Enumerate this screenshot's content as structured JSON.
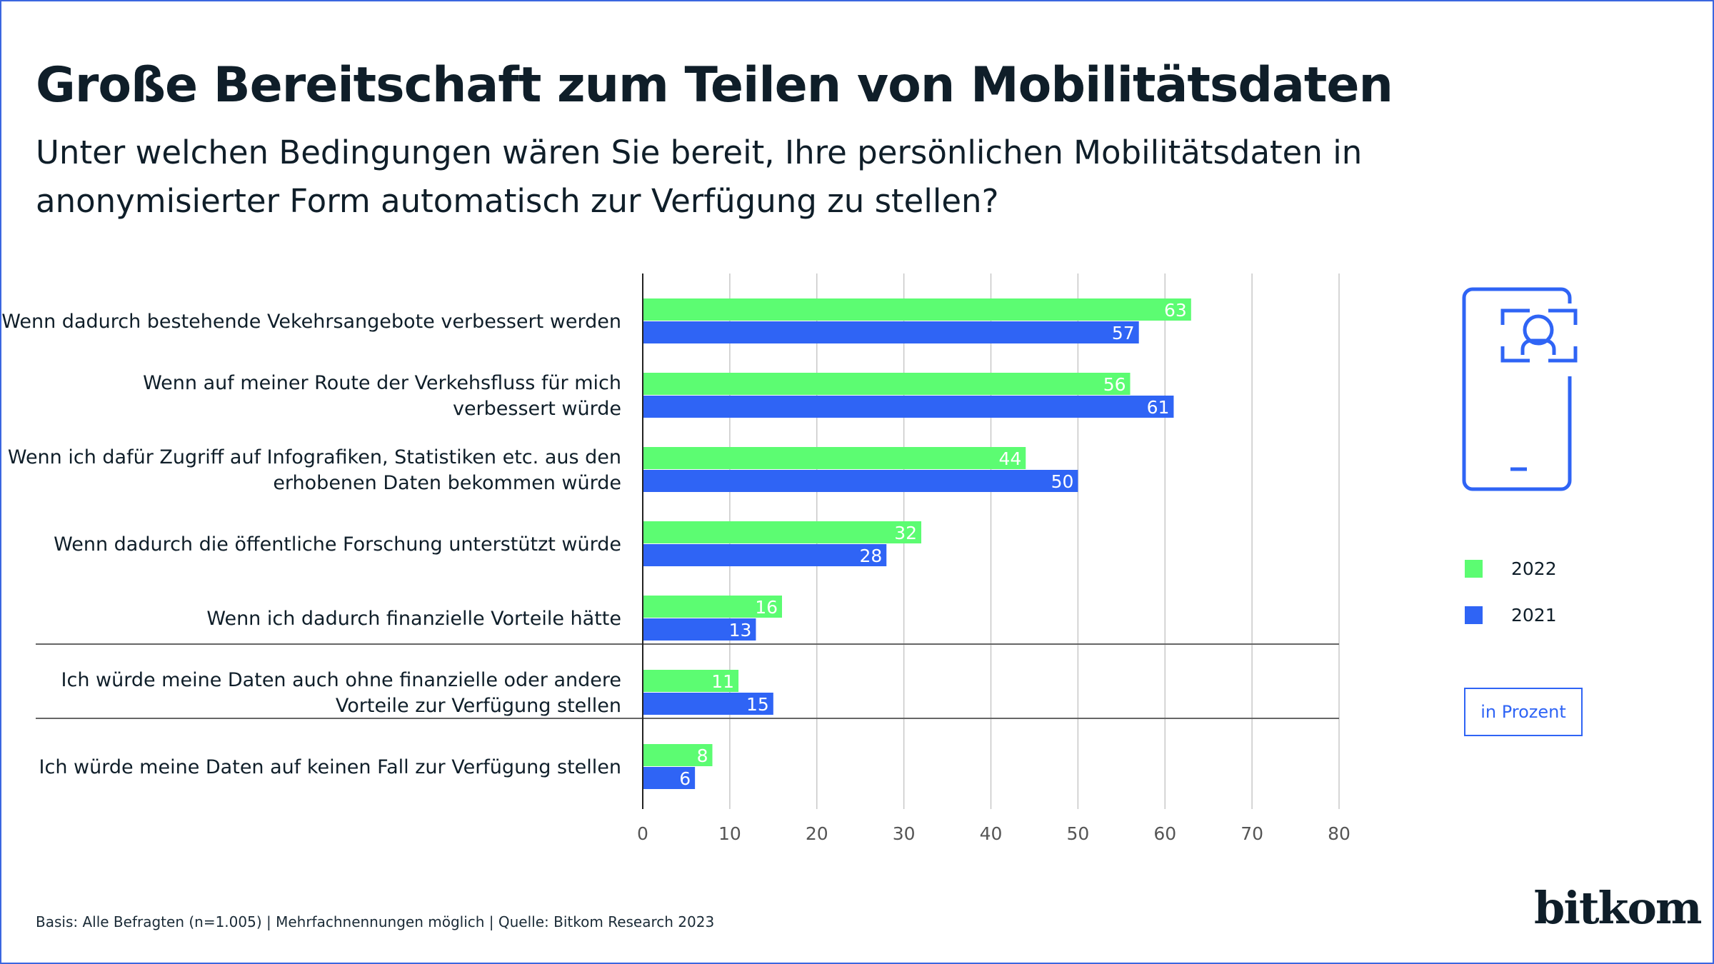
{
  "title": "Große Bereitschaft zum Teilen von Mobilitätsdaten",
  "subtitle": "Unter welchen Bedingungen wären Sie bereit, Ihre persönlichen Mobilitätsdaten in anonymisierter Form automatisch zur Verfügung zu stellen?",
  "unit_label": "in Prozent",
  "footnote": "Basis: Alle Befragten (n=1.005) | Mehrfachnennungen möglich | Quelle: Bitkom Research 2023",
  "logo": "bitkom",
  "icon": "phone-face-scan-icon",
  "chart_data": {
    "type": "bar",
    "orientation": "horizontal",
    "categories": [
      [
        "Wenn dadurch bestehende Vekehrsangebote verbessert werden"
      ],
      [
        "Wenn auf meiner Route der Verkehsfluss für mich",
        "verbessert würde"
      ],
      [
        "Wenn ich dafür Zugriff auf Infografiken, Statistiken etc. aus den",
        "erhobenen Daten bekommen würde"
      ],
      [
        "Wenn dadurch die öffentliche Forschung unterstützt würde"
      ],
      [
        "Wenn ich dadurch finanzielle Vorteile hätte"
      ],
      [
        "Ich würde meine Daten auch ohne finanzielle oder andere",
        "Vorteile zur Verfügung stellen"
      ],
      [
        "Ich würde meine Daten auf keinen Fall zur Verfügung stellen"
      ]
    ],
    "series": [
      {
        "name": "2022",
        "color": "#5cfc72",
        "values": [
          63,
          56,
          44,
          32,
          16,
          11,
          8
        ]
      },
      {
        "name": "2021",
        "color": "#2f64f5",
        "values": [
          57,
          61,
          50,
          28,
          13,
          15,
          6
        ]
      }
    ],
    "xlim": [
      0,
      80
    ],
    "xticks": [
      0,
      10,
      20,
      30,
      40,
      50,
      60,
      70,
      80
    ],
    "grid": true,
    "separators_after": [
      4,
      5
    ],
    "legend_position": "right",
    "data_labels": true
  }
}
